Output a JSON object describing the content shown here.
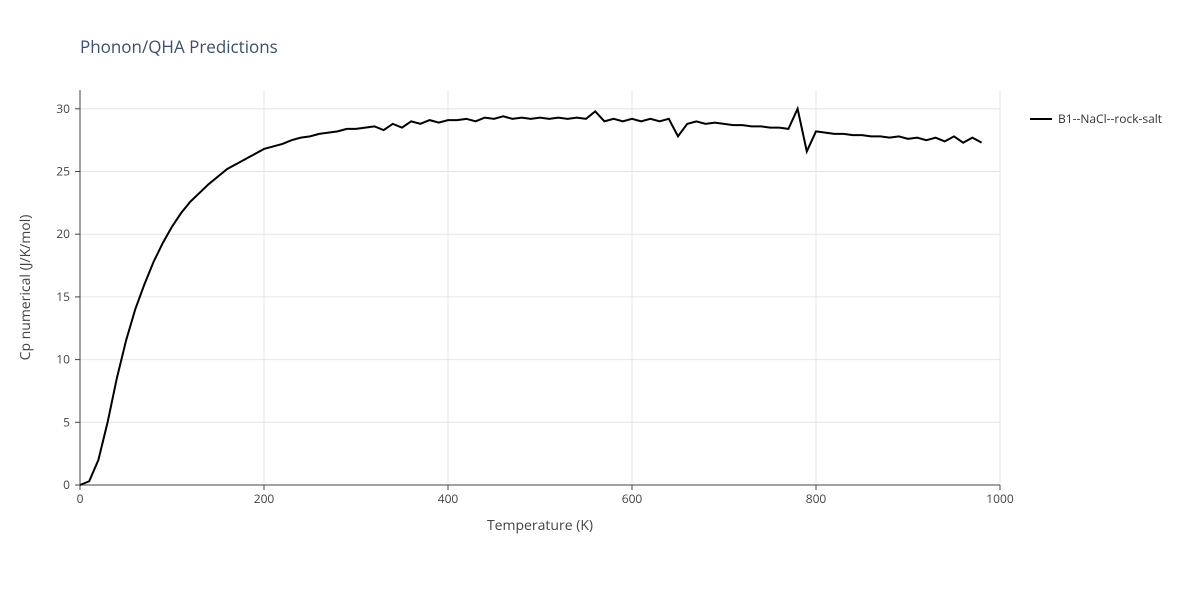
{
  "chart": {
    "type": "line",
    "title": "Phonon/QHA Predictions",
    "title_fontsize": 17,
    "title_color": "#3b4e6b",
    "background_color": "#ffffff",
    "plot_border_color": "#444444",
    "grid_color": "#e6e6e6",
    "font_family": "Segoe UI, Open Sans, Arial, sans-serif",
    "x": {
      "label": "Temperature (K)",
      "label_fontsize": 14,
      "min": 0,
      "max": 1000,
      "ticks": [
        0,
        200,
        400,
        600,
        800,
        1000
      ],
      "tick_fontsize": 12
    },
    "y": {
      "label": "Cp numerical (J/K/mol)",
      "label_fontsize": 14,
      "min": 0,
      "max": 31.5,
      "ticks": [
        0,
        5,
        10,
        15,
        20,
        25,
        30
      ],
      "tick_fontsize": 12
    },
    "legend": {
      "position": "right",
      "items": [
        {
          "label": "B1--NaCl--rock-salt",
          "color": "#000000"
        }
      ]
    },
    "series": [
      {
        "name": "B1--NaCl--rock-salt",
        "color": "#000000",
        "line_width": 2,
        "x": [
          0,
          10,
          20,
          30,
          40,
          50,
          60,
          70,
          80,
          90,
          100,
          110,
          120,
          130,
          140,
          150,
          160,
          170,
          180,
          190,
          200,
          210,
          220,
          230,
          240,
          250,
          260,
          270,
          280,
          290,
          300,
          310,
          320,
          330,
          340,
          350,
          360,
          370,
          380,
          390,
          400,
          410,
          420,
          430,
          440,
          450,
          460,
          470,
          480,
          490,
          500,
          510,
          520,
          530,
          540,
          550,
          560,
          570,
          580,
          590,
          600,
          610,
          620,
          630,
          640,
          650,
          660,
          670,
          680,
          690,
          700,
          710,
          720,
          730,
          740,
          750,
          760,
          770,
          780,
          790,
          800,
          810,
          820,
          830,
          840,
          850,
          860,
          870,
          880,
          890,
          900,
          910,
          920,
          930,
          940,
          950,
          960,
          970,
          980
        ],
        "y": [
          0.0,
          0.3,
          2.0,
          5.0,
          8.5,
          11.5,
          14.0,
          16.0,
          17.8,
          19.3,
          20.6,
          21.7,
          22.6,
          23.3,
          24.0,
          24.6,
          25.2,
          25.6,
          26.0,
          26.4,
          26.8,
          27.0,
          27.2,
          27.5,
          27.7,
          27.8,
          28.0,
          28.1,
          28.2,
          28.4,
          28.4,
          28.5,
          28.6,
          28.3,
          28.8,
          28.5,
          29.0,
          28.8,
          29.1,
          28.9,
          29.1,
          29.1,
          29.2,
          29.0,
          29.3,
          29.2,
          29.4,
          29.2,
          29.3,
          29.2,
          29.3,
          29.2,
          29.3,
          29.2,
          29.3,
          29.2,
          29.8,
          29.0,
          29.2,
          29.0,
          29.2,
          29.0,
          29.2,
          29.0,
          29.2,
          27.8,
          28.8,
          29.0,
          28.8,
          28.9,
          28.8,
          28.7,
          28.7,
          28.6,
          28.6,
          28.5,
          28.5,
          28.4,
          30.0,
          26.6,
          28.2,
          28.1,
          28.0,
          28.0,
          27.9,
          27.9,
          27.8,
          27.8,
          27.7,
          27.8,
          27.6,
          27.7,
          27.5,
          27.7,
          27.4,
          27.8,
          27.3,
          27.7,
          27.3
        ]
      }
    ]
  }
}
